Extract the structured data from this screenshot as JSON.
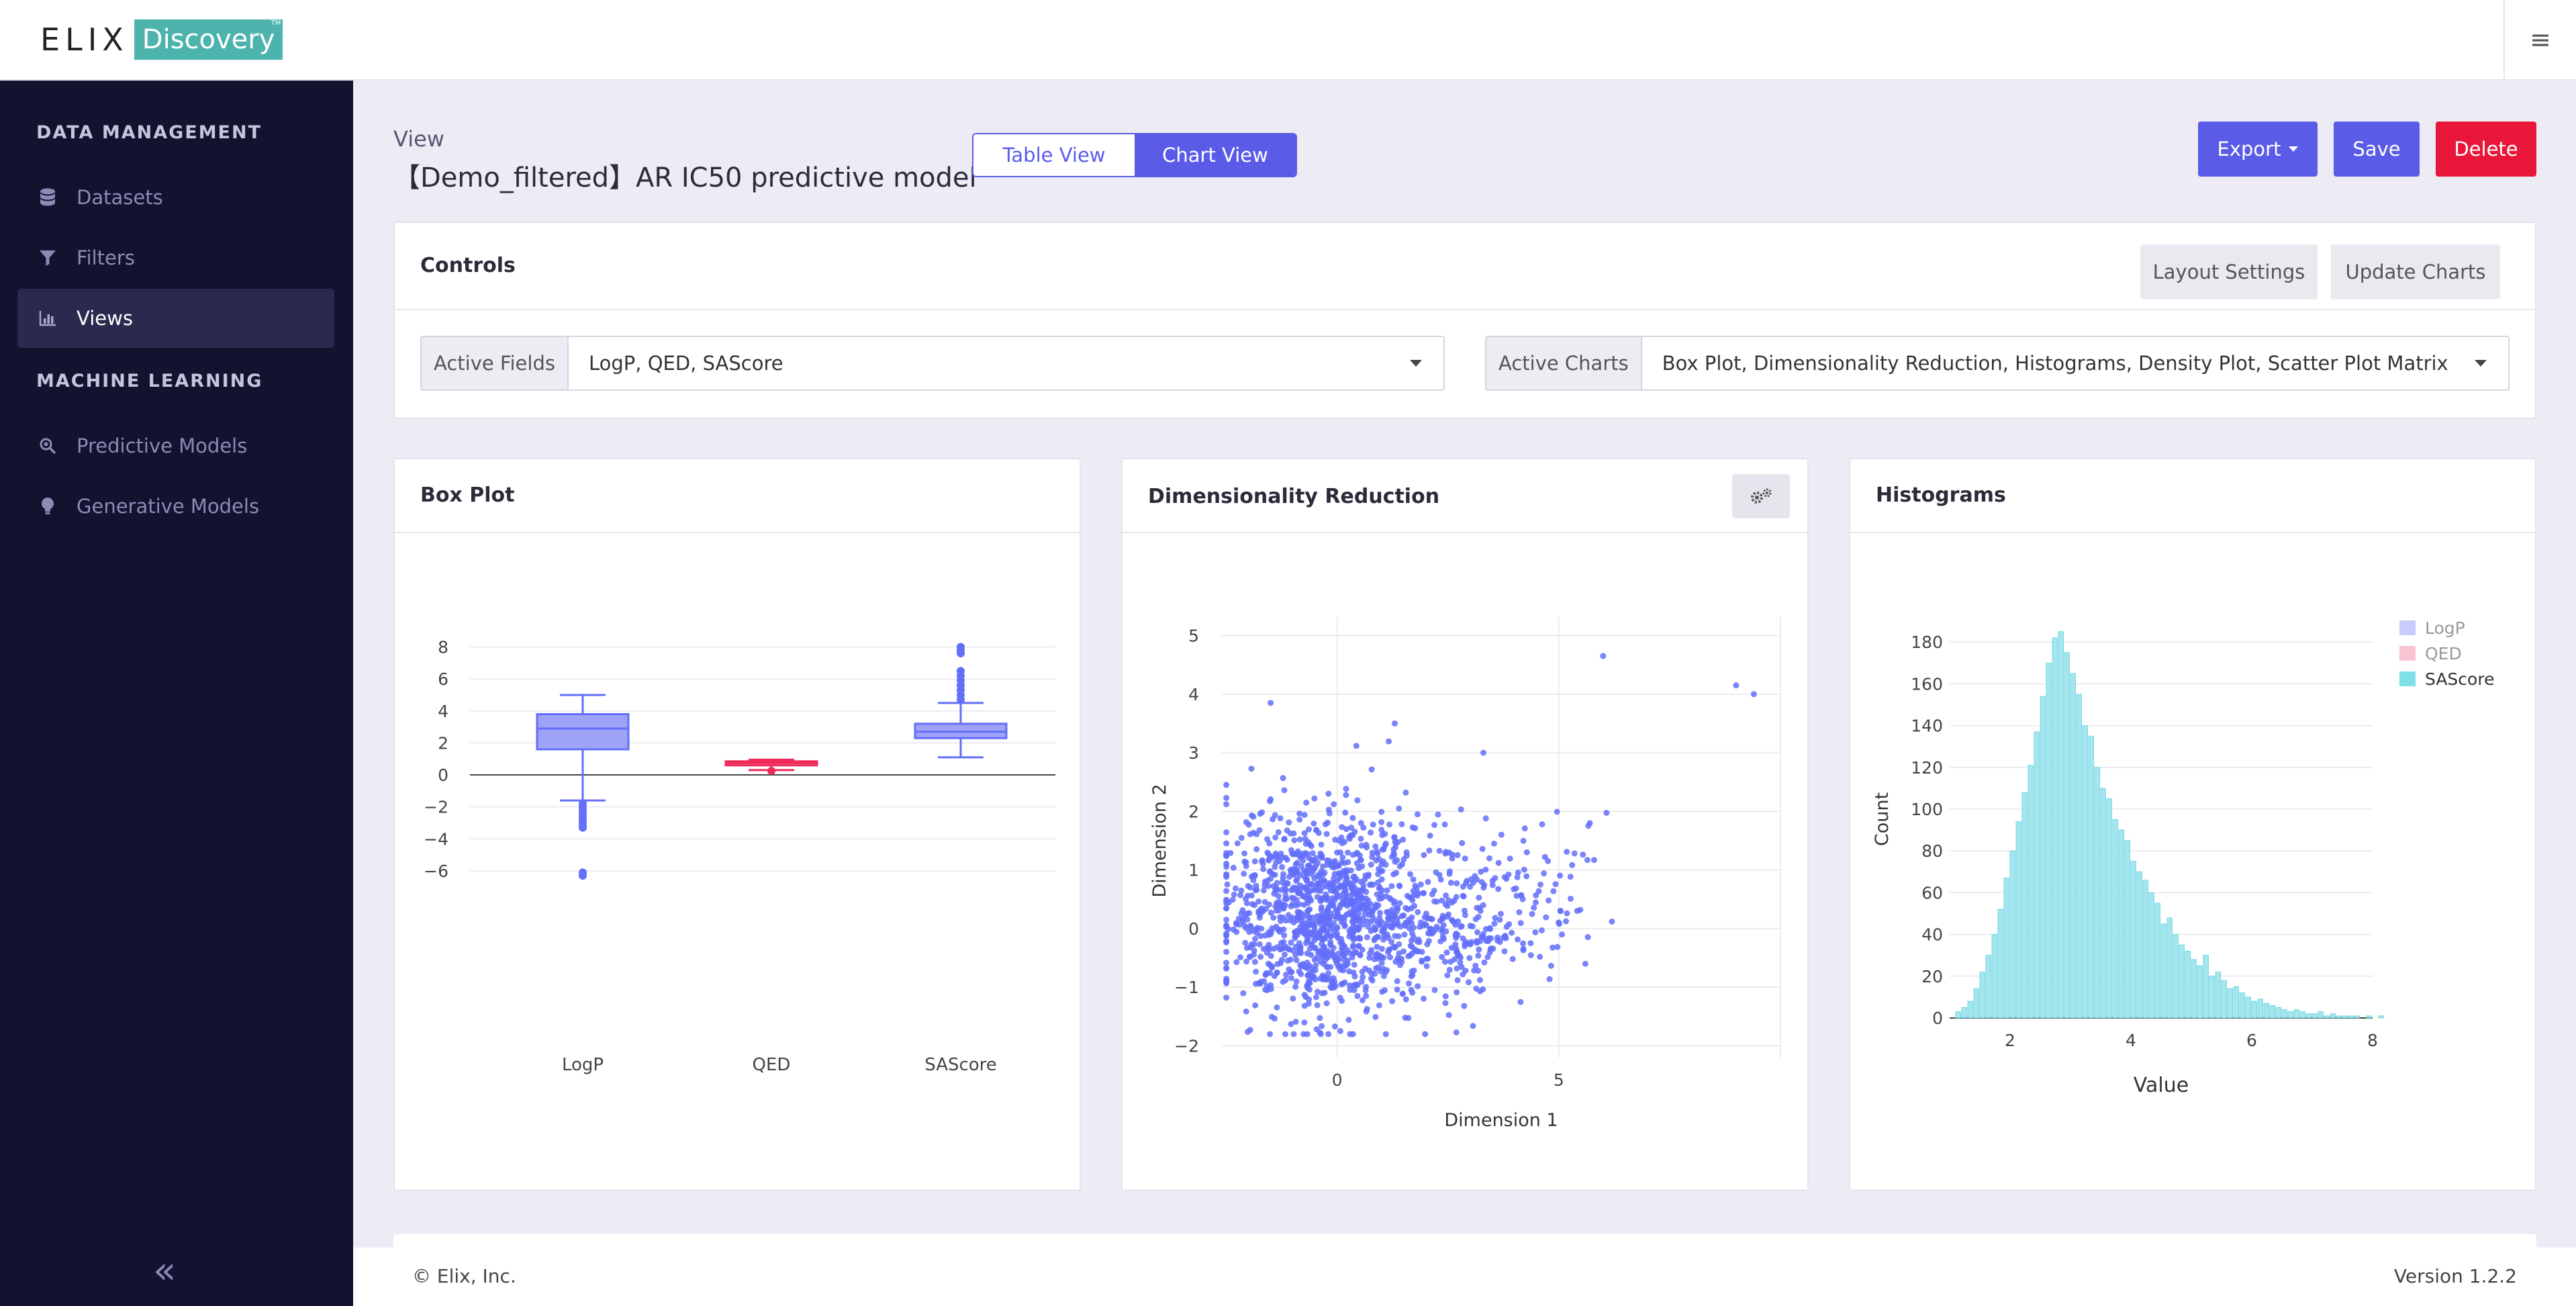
{
  "header": {
    "logo_word": "ELIX",
    "logo_badge": "Discovery",
    "logo_tm": "TM"
  },
  "sidebar": {
    "section_data": "DATA MANAGEMENT",
    "section_ml": "MACHINE LEARNING",
    "items": [
      {
        "label": "Datasets",
        "icon": "database-icon"
      },
      {
        "label": "Filters",
        "icon": "filter-icon"
      },
      {
        "label": "Views",
        "icon": "bar-chart-icon",
        "active": true
      },
      {
        "label": "Predictive Models",
        "icon": "search-icon"
      },
      {
        "label": "Generative Models",
        "icon": "lightbulb-icon"
      }
    ]
  },
  "view": {
    "label": "View",
    "title": "【Demo_filtered】AR IC50 predictive model",
    "table_view": "Table View",
    "chart_view": "Chart View",
    "export": "Export",
    "save": "Save",
    "delete": "Delete"
  },
  "controls": {
    "title": "Controls",
    "layout_settings": "Layout Settings",
    "update_charts": "Update Charts",
    "active_fields_label": "Active Fields",
    "active_fields_value": "LogP, QED, SAScore",
    "active_charts_label": "Active Charts",
    "active_charts_value": "Box Plot, Dimensionality Reduction, Histograms, Density Plot, Scatter Plot Matrix"
  },
  "colors": {
    "accent": "#5a5ce8",
    "danger": "#e8173a",
    "sidebar": "#13122f",
    "logp": "#636efa",
    "qed": "#ef2a5b",
    "sascore": "#00cc96"
  },
  "chart_data": [
    {
      "type": "box",
      "title": "Box Plot",
      "categories": [
        "LogP",
        "QED",
        "SAScore"
      ],
      "ylim": [
        -6.8,
        8.4
      ],
      "yticks": [
        "8",
        "6",
        "4",
        "2",
        "0",
        "−2",
        "−4",
        "−6"
      ],
      "series": [
        {
          "name": "LogP",
          "min": -1.6,
          "q1": 1.6,
          "median": 2.9,
          "q3": 3.8,
          "max": 5.0,
          "outliers": [
            -1.8,
            -2.0,
            -2.2,
            -2.4,
            -2.6,
            -2.8,
            -3.0,
            -3.2,
            -3.3,
            -6.1,
            -6.3
          ]
        },
        {
          "name": "QED",
          "min": 0.3,
          "q1": 0.6,
          "median": 0.75,
          "q3": 0.85,
          "max": 0.95,
          "outliers": [
            0.25
          ]
        },
        {
          "name": "SAScore",
          "min": 1.1,
          "q1": 2.3,
          "median": 2.7,
          "q3": 3.2,
          "max": 4.5,
          "outliers": [
            4.7,
            5.0,
            5.3,
            5.6,
            5.9,
            6.2,
            6.5,
            7.6,
            7.8,
            8.0
          ]
        }
      ]
    },
    {
      "type": "scatter",
      "title": "Dimensionality Reduction",
      "xlabel": "Dimension 1",
      "ylabel": "Dimension 2",
      "xlim": [
        -2.6,
        10
      ],
      "ylim": [
        -2.2,
        5.2
      ],
      "xticks": [
        "0",
        "5"
      ],
      "yticks": [
        "5",
        "4",
        "3",
        "2",
        "1",
        "0",
        "−1",
        "−2"
      ],
      "n_points": 1500
    },
    {
      "type": "bar",
      "title": "Histograms",
      "xlabel": "Value",
      "ylabel": "Count",
      "xlim": [
        1.0,
        8.0
      ],
      "ylim": [
        0,
        190
      ],
      "xticks": [
        "2",
        "4",
        "6",
        "8"
      ],
      "yticks": [
        "180",
        "160",
        "140",
        "120",
        "100",
        "80",
        "60",
        "40",
        "20",
        "0"
      ],
      "legend": [
        "LogP",
        "QED",
        "SAScore"
      ],
      "series_name": "SAScore",
      "bin_start": 1.1,
      "bin_width": 0.1,
      "values": [
        3,
        5,
        8,
        14,
        22,
        30,
        40,
        52,
        67,
        80,
        94,
        108,
        121,
        137,
        154,
        170,
        182,
        185,
        175,
        165,
        155,
        140,
        135,
        120,
        110,
        105,
        95,
        90,
        85,
        75,
        70,
        66,
        60,
        55,
        45,
        48,
        40,
        35,
        32,
        28,
        25,
        30,
        20,
        22,
        18,
        14,
        15,
        12,
        10,
        8,
        9,
        7,
        6,
        5,
        4,
        3,
        4,
        3,
        2,
        2,
        3,
        1,
        2,
        1,
        1,
        1,
        1,
        0,
        1,
        0,
        1
      ]
    }
  ],
  "footer": {
    "copyright": "© Elix, Inc.",
    "version": "Version 1.2.2"
  }
}
